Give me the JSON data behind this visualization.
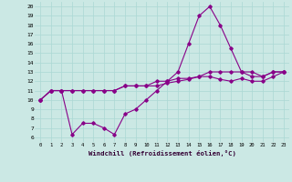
{
  "xlabel": "Windchill (Refroidissement éolien,°C)",
  "background_color": "#cbe8e4",
  "grid_color": "#aad8d4",
  "line_color": "#880088",
  "xlim": [
    -0.5,
    23.5
  ],
  "ylim": [
    5.5,
    20.5
  ],
  "xticks": [
    0,
    1,
    2,
    3,
    4,
    5,
    6,
    7,
    8,
    9,
    10,
    11,
    12,
    13,
    14,
    15,
    16,
    17,
    18,
    19,
    20,
    21,
    22,
    23
  ],
  "yticks": [
    6,
    7,
    8,
    9,
    10,
    11,
    12,
    13,
    14,
    15,
    16,
    17,
    18,
    19,
    20
  ],
  "line1_x": [
    0,
    1,
    2,
    3,
    4,
    5,
    6,
    7,
    8,
    9,
    10,
    11,
    12,
    13,
    14,
    15,
    16,
    17,
    18,
    19,
    20,
    21,
    22,
    23
  ],
  "line1_y": [
    10,
    11,
    11,
    6.3,
    7.5,
    7.5,
    7.0,
    6.3,
    8.5,
    9.0,
    10.0,
    11.0,
    12.0,
    13.0,
    16.0,
    19.0,
    20.0,
    18.0,
    15.5,
    13.0,
    13.0,
    12.5,
    13.0,
    13.0
  ],
  "line2_x": [
    0,
    1,
    2,
    3,
    4,
    5,
    6,
    7,
    8,
    9,
    10,
    11,
    12,
    13,
    14,
    15,
    16,
    17,
    18,
    19,
    20,
    21,
    22,
    23
  ],
  "line2_y": [
    10,
    11,
    11,
    11,
    11,
    11,
    11,
    11,
    11.5,
    11.5,
    11.5,
    11.5,
    11.8,
    12.0,
    12.2,
    12.5,
    13.0,
    13.0,
    13.0,
    13.0,
    12.5,
    12.5,
    13.0,
    13.0
  ],
  "line3_x": [
    0,
    1,
    2,
    3,
    4,
    5,
    6,
    7,
    8,
    9,
    10,
    11,
    12,
    13,
    14,
    15,
    16,
    17,
    18,
    19,
    20,
    21,
    22,
    23
  ],
  "line3_y": [
    10,
    11,
    11,
    11,
    11,
    11,
    11,
    11,
    11.5,
    11.5,
    11.5,
    12.0,
    12.0,
    12.3,
    12.3,
    12.5,
    12.5,
    12.2,
    12.0,
    12.3,
    12.0,
    12.0,
    12.5,
    13.0
  ]
}
